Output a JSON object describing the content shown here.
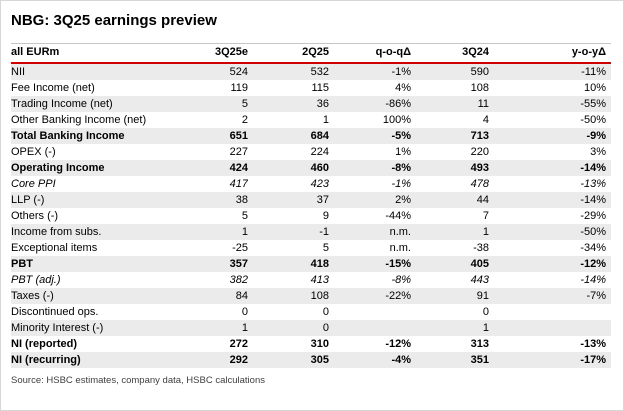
{
  "title": "NBG: 3Q25 earnings preview",
  "source": "Source: HSBC estimates, company data, HSBC calculations",
  "colors": {
    "accent_red": "#d10000",
    "stripe_gray": "#ebebeb",
    "table_top_border": "#c6c6c6",
    "frame_border": "#d6d6d6"
  },
  "table": {
    "columns": [
      "all EURm",
      "3Q25e",
      "2Q25",
      "q-o-qΔ",
      "3Q24",
      "y-o-yΔ"
    ],
    "rows": [
      {
        "label": "NII",
        "values": [
          "524",
          "532",
          "-1%",
          "590",
          "-11%"
        ],
        "style": "normal"
      },
      {
        "label": "Fee Income (net)",
        "values": [
          "119",
          "115",
          "4%",
          "108",
          "10%"
        ],
        "style": "normal"
      },
      {
        "label": "Trading Income (net)",
        "values": [
          "5",
          "36",
          "-86%",
          "11",
          "-55%"
        ],
        "style": "normal"
      },
      {
        "label": "Other Banking Income (net)",
        "values": [
          "2",
          "1",
          "100%",
          "4",
          "-50%"
        ],
        "style": "normal"
      },
      {
        "label": "Total Banking Income",
        "values": [
          "651",
          "684",
          "-5%",
          "713",
          "-9%"
        ],
        "style": "bold"
      },
      {
        "label": "OPEX (-)",
        "values": [
          "227",
          "224",
          "1%",
          "220",
          "3%"
        ],
        "style": "normal"
      },
      {
        "label": "Operating Income",
        "values": [
          "424",
          "460",
          "-8%",
          "493",
          "-14%"
        ],
        "style": "bold"
      },
      {
        "label": "Core PPI",
        "values": [
          "417",
          "423",
          "-1%",
          "478",
          "-13%"
        ],
        "style": "italic"
      },
      {
        "label": "LLP (-)",
        "values": [
          "38",
          "37",
          "2%",
          "44",
          "-14%"
        ],
        "style": "normal"
      },
      {
        "label": "Others (-)",
        "values": [
          "5",
          "9",
          "-44%",
          "7",
          "-29%"
        ],
        "style": "normal"
      },
      {
        "label": "Income from subs.",
        "values": [
          "1",
          "-1",
          "n.m.",
          "1",
          "-50%"
        ],
        "style": "normal"
      },
      {
        "label": "Exceptional items",
        "values": [
          "-25",
          "5",
          "n.m.",
          "-38",
          "-34%"
        ],
        "style": "normal"
      },
      {
        "label": "PBT",
        "values": [
          "357",
          "418",
          "-15%",
          "405",
          "-12%"
        ],
        "style": "bold"
      },
      {
        "label": "PBT (adj.)",
        "values": [
          "382",
          "413",
          "-8%",
          "443",
          "-14%"
        ],
        "style": "italic"
      },
      {
        "label": "Taxes (-)",
        "values": [
          "84",
          "108",
          "-22%",
          "91",
          "-7%"
        ],
        "style": "normal"
      },
      {
        "label": "Discontinued ops.",
        "values": [
          "0",
          "0",
          "",
          "0",
          ""
        ],
        "style": "normal"
      },
      {
        "label": "Minority Interest (-)",
        "values": [
          "1",
          "0",
          "",
          "1",
          ""
        ],
        "style": "normal"
      },
      {
        "label": "NI (reported)",
        "values": [
          "272",
          "310",
          "-12%",
          "313",
          "-13%"
        ],
        "style": "bold"
      },
      {
        "label": "NI (recurring)",
        "values": [
          "292",
          "305",
          "-4%",
          "351",
          "-17%"
        ],
        "style": "bold"
      }
    ]
  }
}
